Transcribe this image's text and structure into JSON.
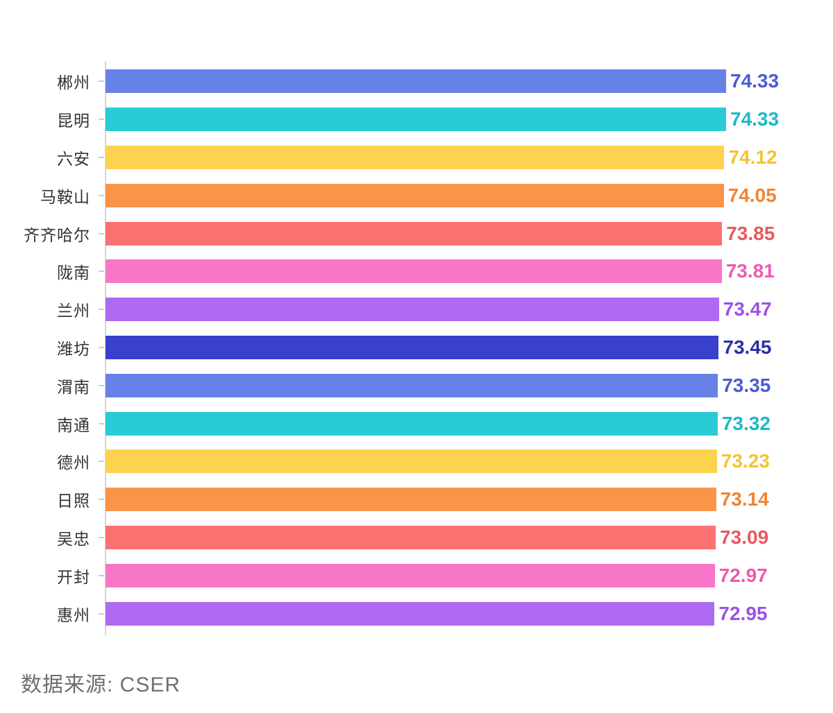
{
  "chart_data": {
    "type": "bar",
    "orientation": "horizontal",
    "title": "",
    "xlabel": "",
    "ylabel": "",
    "xlim": [
      0,
      74.33
    ],
    "grid": false,
    "legend": "none",
    "value_label_position": "end-of-bar",
    "categories": [
      "郴州",
      "昆明",
      "六安",
      "马鞍山",
      "齐齐哈尔",
      "陇南",
      "兰州",
      "潍坊",
      "渭南",
      "南通",
      "德州",
      "日照",
      "吴忠",
      "开封",
      "惠州"
    ],
    "values": [
      74.33,
      74.33,
      74.12,
      74.05,
      73.85,
      73.81,
      73.47,
      73.45,
      73.35,
      73.32,
      73.23,
      73.14,
      73.09,
      72.97,
      72.95
    ],
    "bar_colors": [
      "#6781E8",
      "#29CBD6",
      "#FDD24F",
      "#FA9449",
      "#FB7171",
      "#F776C8",
      "#AE6BF2",
      "#3840CC",
      "#6781E8",
      "#29CBD6",
      "#FDD24F",
      "#FA9449",
      "#FB7171",
      "#F776C8",
      "#AE6BF2"
    ],
    "value_label_colors": [
      "#4A5BD6",
      "#1BB9C6",
      "#F5C334",
      "#F28432",
      "#EA5860",
      "#EE58B2",
      "#9B51E6",
      "#2A30A6",
      "#4A5BD6",
      "#1BB9C6",
      "#F5C334",
      "#F28432",
      "#EA5860",
      "#EE58B2",
      "#9B51E6"
    ],
    "axis_color": "#d6d6d6",
    "tick_color": "#cccccc",
    "category_label_color": "#333333",
    "source": "数据来源: CSER"
  }
}
